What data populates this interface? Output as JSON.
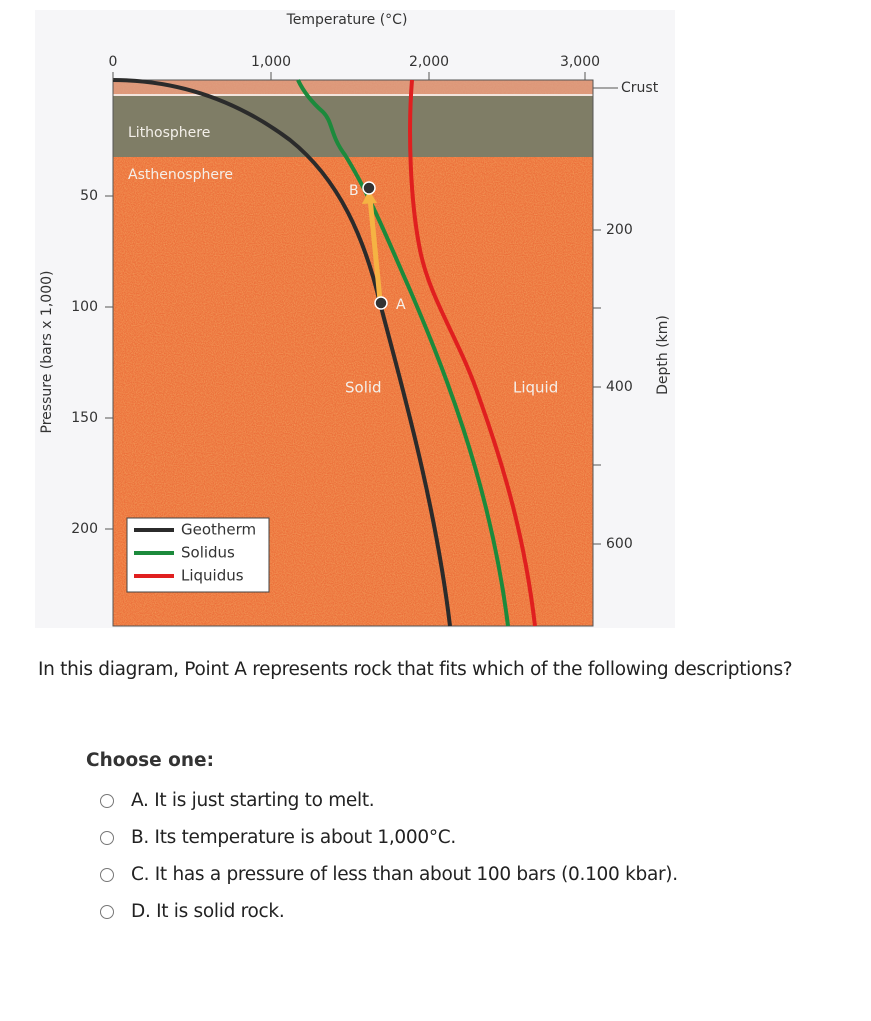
{
  "diagram": {
    "temperature_axis": {
      "title": "Temperature (°C)",
      "ticks": [
        "0",
        "1,000",
        "2,000",
        "3,000"
      ]
    },
    "pressure_axis": {
      "title": "Pressure (bars x 1,000)",
      "ticks": [
        "50",
        "100",
        "150",
        "200"
      ]
    },
    "depth_axis": {
      "title": "Depth (km)",
      "ticks": [
        "Crust",
        "200",
        "400",
        "600"
      ]
    },
    "labels": {
      "lithosphere": "Lithosphere",
      "asthenosphere": "Asthenosphere",
      "point_b": "B",
      "point_a": "A",
      "solid": "Solid",
      "liquid": "Liquid"
    },
    "legend": [
      "Geotherm",
      "Solidus",
      "Liquidus"
    ]
  },
  "question": "In this diagram, Point A represents rock that fits which of the following descriptions?",
  "prompt": "Choose one:",
  "options": [
    "A.  It is just starting to melt.",
    "B.  Its temperature is about 1,000°C.",
    "C.  It has a pressure of less than about 100 bars (0.100 kbar).",
    "D.  It is solid rock."
  ]
}
